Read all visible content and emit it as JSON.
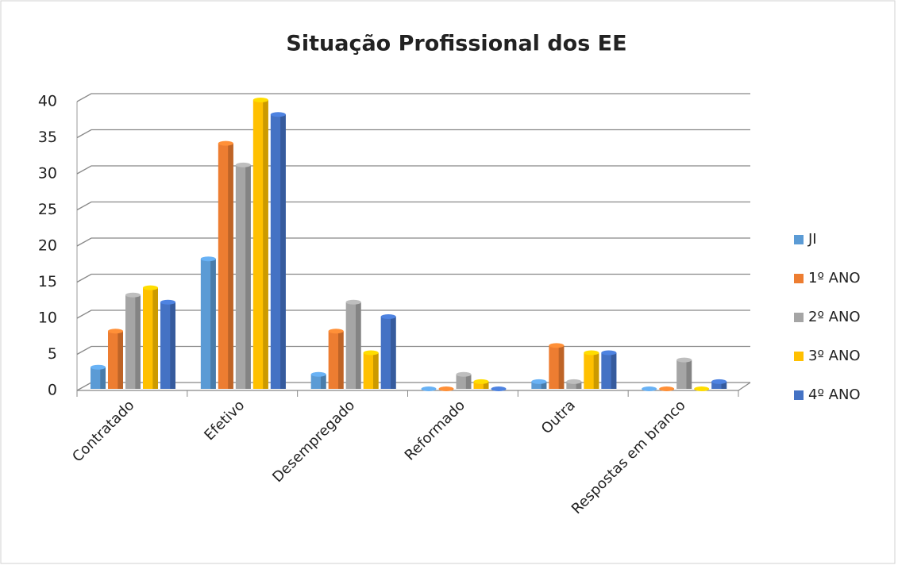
{
  "chart_data": {
    "type": "bar3d",
    "title": "Situação Profissional dos EE",
    "categories": [
      "Contratado",
      "Efetivo",
      "Desempregado",
      "Reformado",
      "Outra",
      "Respostas em branco"
    ],
    "series": [
      {
        "name": "JI",
        "color": "#5b9bd5",
        "values": [
          3,
          18,
          2,
          0,
          1,
          0
        ]
      },
      {
        "name": "1º ANO",
        "color": "#ed7d31",
        "values": [
          8,
          34,
          8,
          0,
          6,
          0
        ]
      },
      {
        "name": "2º ANO",
        "color": "#a5a5a5",
        "values": [
          13,
          31,
          12,
          2,
          1,
          4
        ]
      },
      {
        "name": "3º ANO",
        "color": "#ffc000",
        "values": [
          14,
          40,
          5,
          1,
          5,
          0
        ]
      },
      {
        "name": "4º ANO",
        "color": "#4472c4",
        "values": [
          12,
          38,
          10,
          0,
          5,
          1
        ]
      }
    ],
    "ylim": [
      0,
      40
    ],
    "yticks": [
      0,
      5,
      10,
      15,
      20,
      25,
      30,
      35,
      40
    ],
    "grid": true,
    "legend": "right"
  }
}
